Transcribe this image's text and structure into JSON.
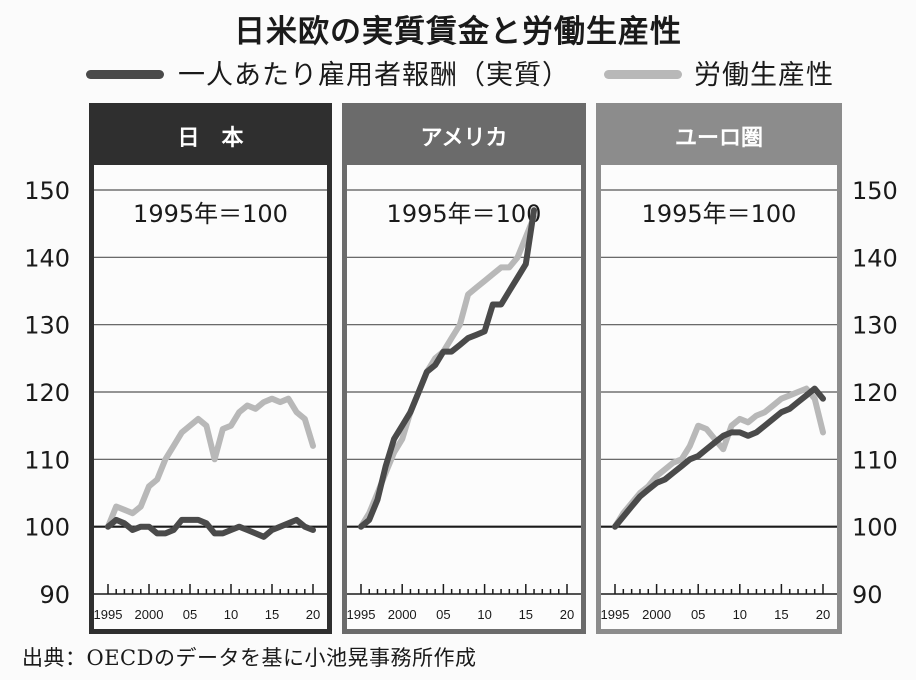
{
  "title": "日米欧の実質賃金と労働生産性",
  "source": "出典：OECDのデータを基に小池晃事務所作成",
  "legend": [
    {
      "key": "wage",
      "label": "一人あたり雇用者報酬（実質）",
      "color": "#4a4a4a"
    },
    {
      "key": "prod",
      "label": "労働生産性",
      "color": "#b8b8b8"
    }
  ],
  "colors": {
    "wage": "#4a4a4a",
    "prod": "#b8b8b8",
    "panel_japan": "#2f2f2f",
    "panel_us": "#6b6b6b",
    "panel_euro": "#8c8c8c",
    "baseline": "#1a1a1a",
    "grid": "#555555"
  },
  "chart_data": {
    "type": "line",
    "ylim": [
      90,
      150
    ],
    "yticks": [
      "150",
      "140",
      "130",
      "120",
      "110",
      "100",
      "90"
    ],
    "xlim": [
      1995,
      2020
    ],
    "xticks": [
      {
        "value": 1995,
        "label": "1995"
      },
      {
        "value": 2000,
        "label": "2000"
      },
      {
        "value": 2005,
        "label": "05"
      },
      {
        "value": 2010,
        "label": "10"
      },
      {
        "value": 2015,
        "label": "15"
      },
      {
        "value": 2020,
        "label": "20"
      }
    ],
    "grid": true,
    "baseline": 100,
    "legend_position": "top",
    "panels": [
      {
        "name": "日　本",
        "note": "1995年＝100",
        "x": [
          1995,
          1996,
          1997,
          1998,
          1999,
          2000,
          2001,
          2002,
          2003,
          2004,
          2005,
          2006,
          2007,
          2008,
          2009,
          2010,
          2011,
          2012,
          2013,
          2014,
          2015,
          2016,
          2017,
          2018,
          2019,
          2020
        ],
        "series": [
          {
            "key": "wage",
            "name": "一人あたり雇用者報酬（実質）",
            "values": [
              100,
              101,
              100.5,
              99.5,
              100,
              100,
              99,
              99,
              99.5,
              101,
              101,
              101,
              100.5,
              99,
              99,
              99.5,
              100,
              99.5,
              99,
              98.5,
              99.5,
              100,
              100.5,
              101,
              100,
              99.5
            ]
          },
          {
            "key": "prod",
            "name": "労働生産性",
            "values": [
              100,
              103,
              102.5,
              102,
              103,
              106,
              107,
              110,
              112,
              114,
              115,
              116,
              115,
              110,
              114.5,
              115,
              117,
              118,
              117.5,
              118.5,
              119,
              118.5,
              119,
              117,
              116,
              112
            ]
          }
        ]
      },
      {
        "name": "アメリカ",
        "note": "1995年＝100",
        "x": [
          1995,
          1996,
          1997,
          1998,
          1999,
          2000,
          2001,
          2002,
          2003,
          2004,
          2005,
          2006,
          2007,
          2008,
          2009,
          2010,
          2011,
          2012,
          2013,
          2014,
          2015,
          2016,
          2017,
          2018,
          2019,
          2020
        ],
        "series": [
          {
            "key": "wage",
            "name": "一人あたり雇用者報酬（実質）",
            "values": [
              100,
              101,
              104,
              109,
              113,
              115,
              117,
              120,
              123,
              124,
              126,
              126,
              127,
              128,
              128.5,
              129,
              133,
              133,
              135,
              137,
              139,
              147,
              null,
              null,
              null,
              null
            ]
          },
          {
            "key": "prod",
            "name": "労働生産性",
            "values": [
              100,
              102,
              105,
              108,
              111,
              113,
              117,
              120,
              123,
              125,
              126,
              128,
              130,
              134.5,
              135.5,
              136.5,
              137.5,
              138.5,
              138.5,
              140,
              143,
              146,
              null,
              null,
              null,
              null
            ]
          }
        ]
      },
      {
        "name": "ユーロ圏",
        "note": "1995年＝100",
        "x": [
          1995,
          1996,
          1997,
          1998,
          1999,
          2000,
          2001,
          2002,
          2003,
          2004,
          2005,
          2006,
          2007,
          2008,
          2009,
          2010,
          2011,
          2012,
          2013,
          2014,
          2015,
          2016,
          2017,
          2018,
          2019,
          2020
        ],
        "series": [
          {
            "key": "wage",
            "name": "一人あたり雇用者報酬（実質）",
            "values": [
              100,
              101.5,
              103,
              104.5,
              105.5,
              106.5,
              107,
              108,
              109,
              110,
              110.5,
              111.5,
              112.5,
              113.5,
              114,
              114,
              113.5,
              114,
              115,
              116,
              117,
              117.5,
              118.5,
              119.5,
              120.5,
              119
            ]
          },
          {
            "key": "prod",
            "name": "労働生産性",
            "values": [
              100,
              102,
              103.5,
              105,
              106,
              107.5,
              108.5,
              109.5,
              110,
              112,
              115,
              114.5,
              113,
              111.5,
              115,
              116,
              115.5,
              116.5,
              117,
              118,
              119,
              119.5,
              120,
              120.5,
              119,
              114
            ]
          }
        ]
      }
    ]
  }
}
